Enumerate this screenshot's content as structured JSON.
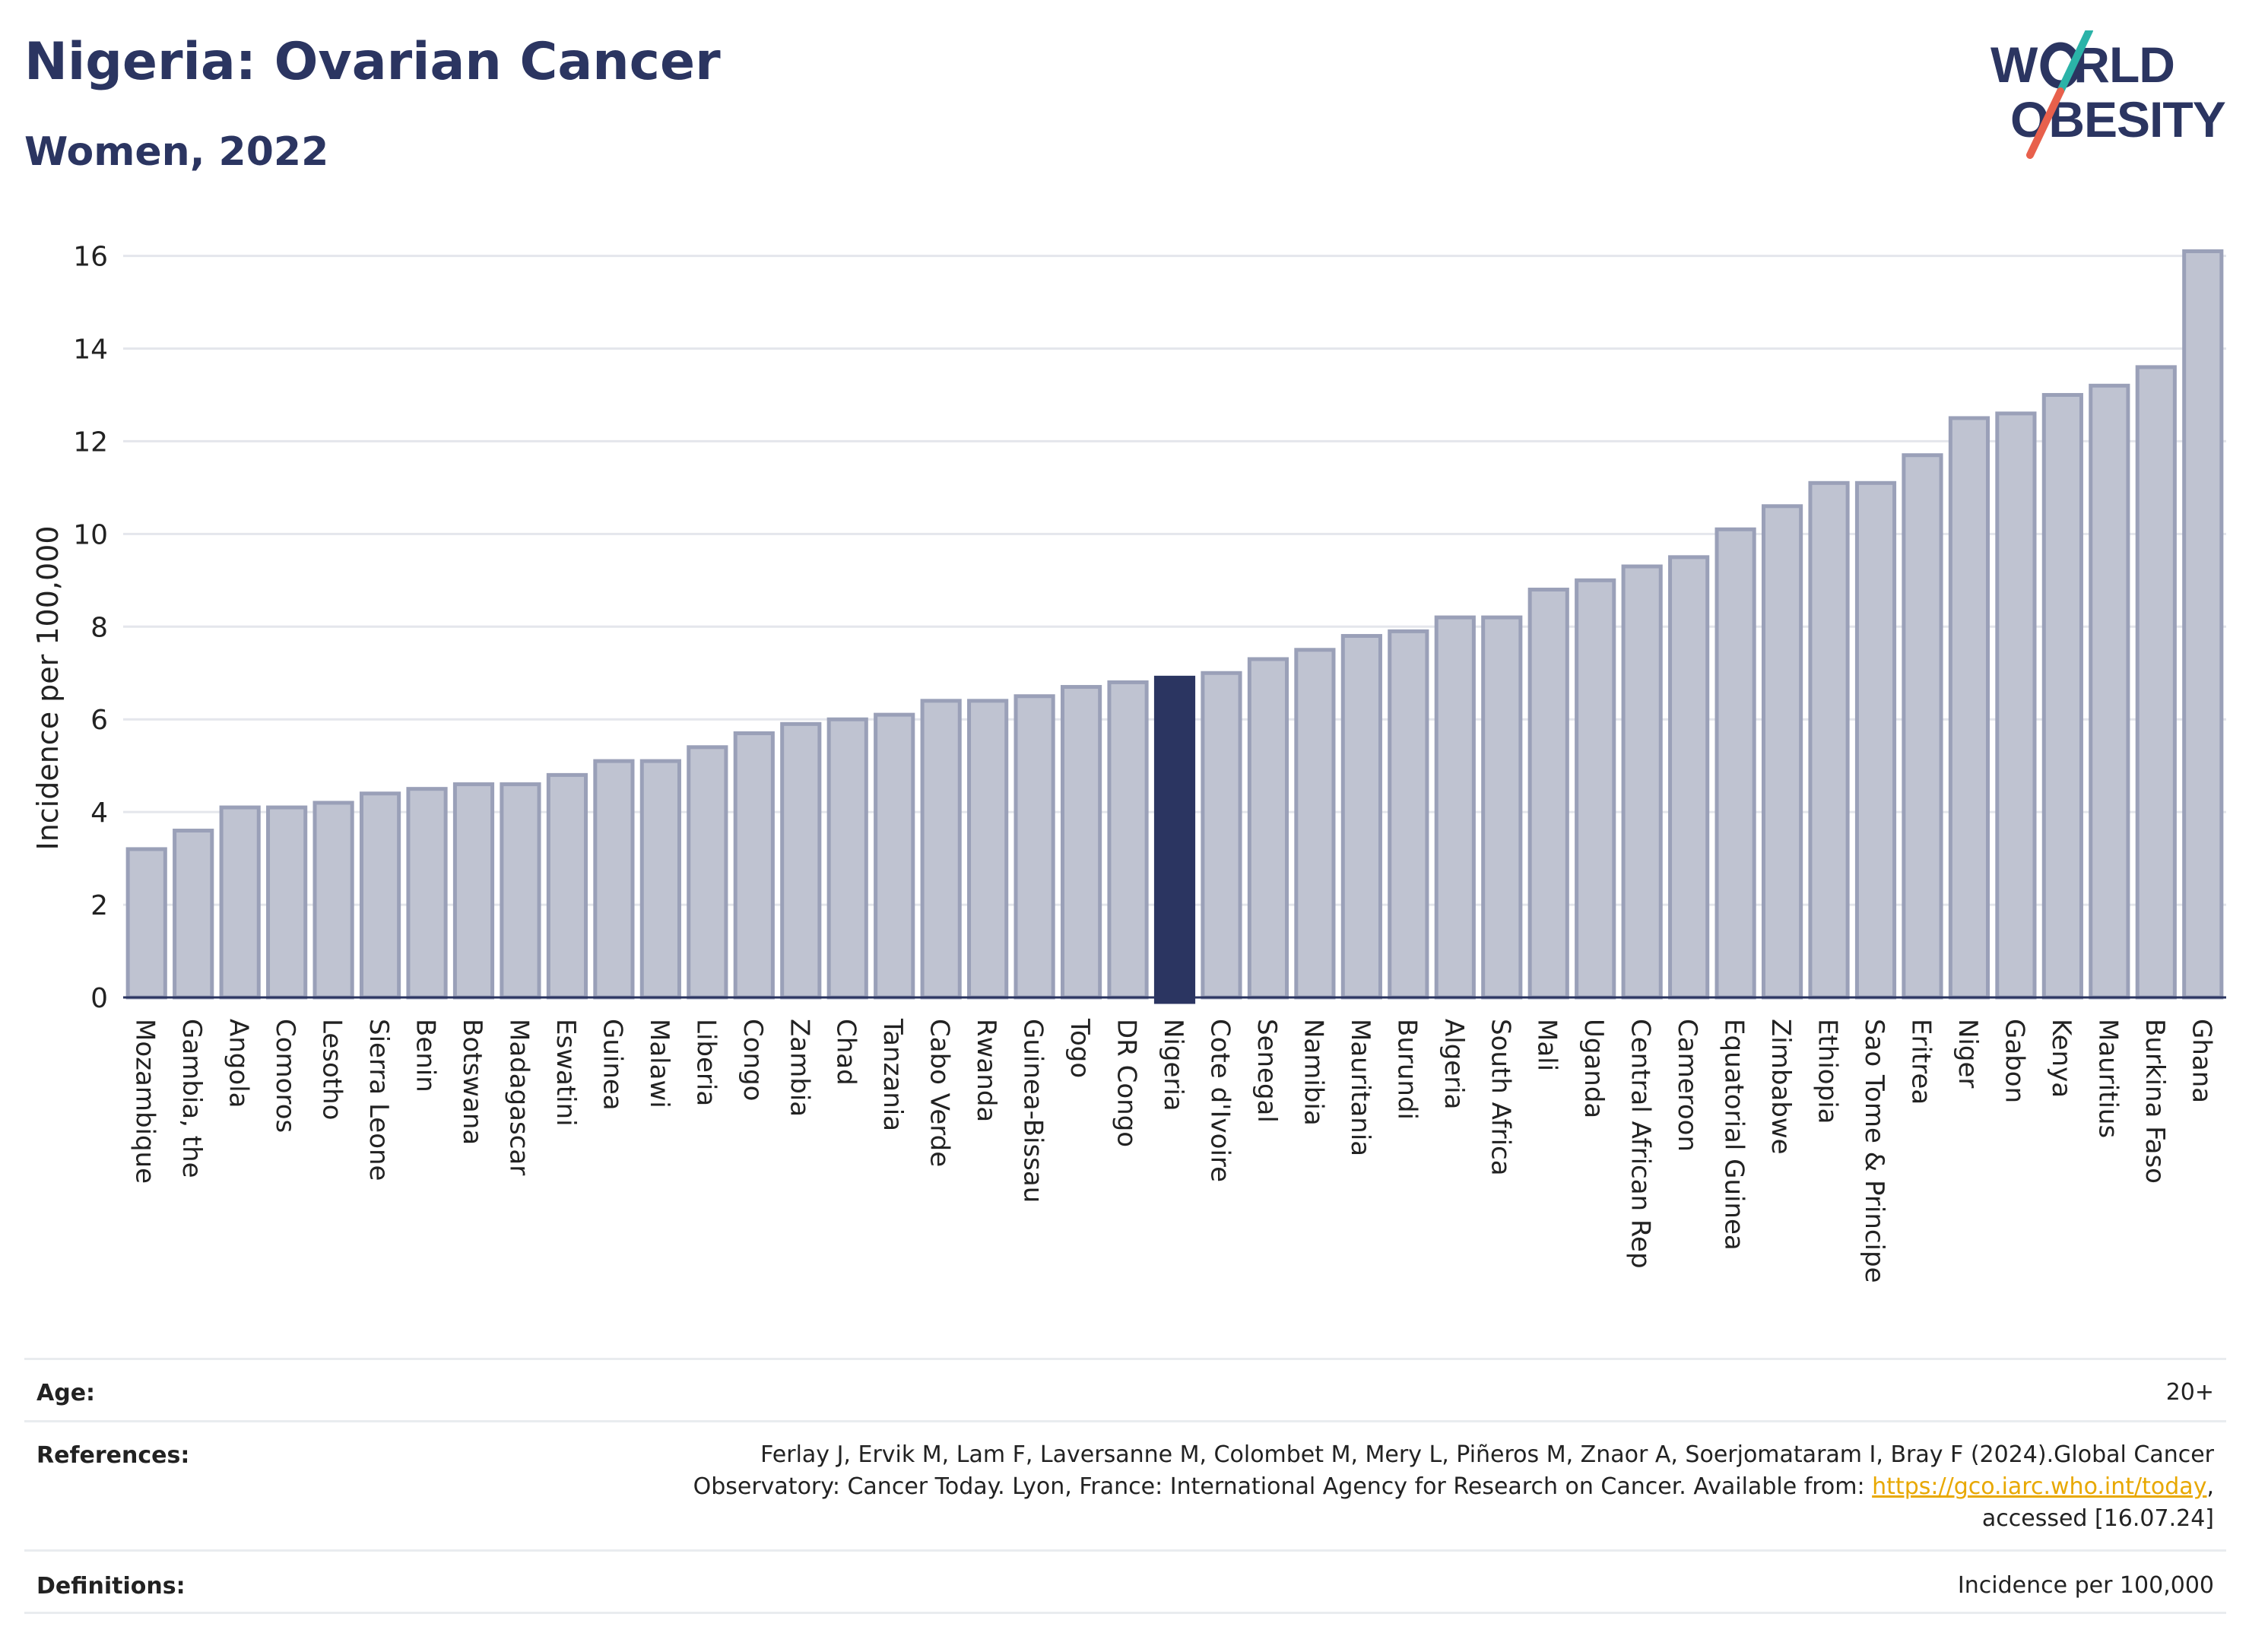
{
  "header": {
    "title": "Nigeria: Ovarian Cancer",
    "subtitle": "Women, 2022"
  },
  "logo": {
    "line1_pre": "W",
    "line1_post": "RLD",
    "line2": "OBESITY",
    "colors": {
      "text": "#2b3561",
      "slash_teal": "#2bb3a8",
      "slash_red": "#e8604c"
    }
  },
  "chart_data": {
    "type": "bar",
    "ylabel": "Incidence per 100,000",
    "ylim": [
      0,
      16.6
    ],
    "yticks": [
      0,
      2,
      4,
      6,
      8,
      10,
      12,
      14,
      16
    ],
    "grid": true,
    "highlight": "Nigeria",
    "colors": {
      "bar": "#bfc3d1",
      "bar_border": "#9aa0b8",
      "highlight": "#2b3561"
    },
    "categories": [
      "Mozambique",
      "Gambia, the",
      "Angola",
      "Comoros",
      "Lesotho",
      "Sierra Leone",
      "Benin",
      "Botswana",
      "Madagascar",
      "Eswatini",
      "Guinea",
      "Malawi",
      "Liberia",
      "Congo",
      "Zambia",
      "Chad",
      "Tanzania",
      "Cabo Verde",
      "Rwanda",
      "Guinea-Bissau",
      "Togo",
      "DR Congo",
      "Nigeria",
      "Cote d'Ivoire",
      "Senegal",
      "Namibia",
      "Mauritania",
      "Burundi",
      "Algeria",
      "South Africa",
      "Mali",
      "Uganda",
      "Central African Rep",
      "Cameroon",
      "Equatorial Guinea",
      "Zimbabwe",
      "Ethiopia",
      "Sao Tome & Principe",
      "Eritrea",
      "Niger",
      "Gabon",
      "Kenya",
      "Mauritius",
      "Burkina Faso",
      "Ghana"
    ],
    "values": [
      3.2,
      3.6,
      4.1,
      4.1,
      4.2,
      4.4,
      4.5,
      4.6,
      4.6,
      4.8,
      5.1,
      5.1,
      5.4,
      5.7,
      5.9,
      6.0,
      6.1,
      6.4,
      6.4,
      6.5,
      6.7,
      6.8,
      6.9,
      7.0,
      7.3,
      7.5,
      7.8,
      7.9,
      8.2,
      8.2,
      8.8,
      9.0,
      9.3,
      9.5,
      10.1,
      10.6,
      11.1,
      11.1,
      11.7,
      12.5,
      12.6,
      13.0,
      13.2,
      13.6,
      16.1
    ]
  },
  "info": {
    "age_label": "Age:",
    "age_value": "20+",
    "references_label": "References:",
    "references_line1": "Ferlay J, Ervik M, Lam F, Laversanne M, Colombet M, Mery L, Piñeros M, Znaor A, Soerjomataram I, Bray F (2024).Global Cancer",
    "references_line2_pre": "Observatory: Cancer Today. Lyon, France: International Agency for Research on Cancer. Available from: ",
    "references_link": "https://gco.iarc.who.int/today",
    "references_line2_post": ",",
    "references_line3": "accessed [16.07.24]",
    "definitions_label": "Definitions:",
    "definitions_value": "Incidence per 100,000"
  }
}
